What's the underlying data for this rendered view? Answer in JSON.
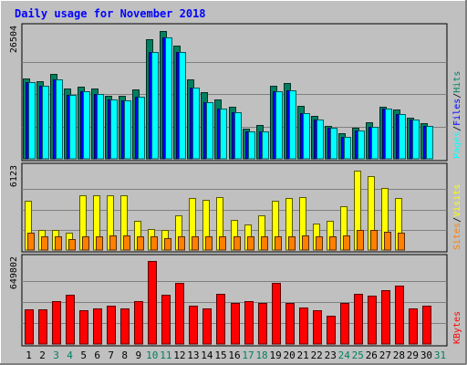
{
  "chart_data": {
    "type": "bar",
    "title": "Daily usage for November 2018",
    "days": [
      "1",
      "2",
      "3",
      "4",
      "5",
      "6",
      "7",
      "8",
      "9",
      "10",
      "11",
      "12",
      "13",
      "14",
      "15",
      "16",
      "17",
      "18",
      "19",
      "20",
      "21",
      "22",
      "23",
      "24",
      "25",
      "26",
      "27",
      "28",
      "29",
      "30",
      "31"
    ],
    "weekend_days": [
      "3",
      "4",
      "10",
      "11",
      "17",
      "18",
      "24",
      "25",
      "31"
    ],
    "panels": [
      {
        "name": "hits-files-pages",
        "max_label": "26504",
        "ymax": 26504,
        "right_labels": [
          "Pages",
          "Files",
          "Hits"
        ],
        "series": [
          {
            "name": "Hits",
            "color": "#008060",
            "values": [
              16500,
              15800,
              17300,
              14300,
              14800,
              14300,
              12900,
              12900,
              14200,
              24500,
              26200,
              23200,
              16300,
              13700,
              12200,
              10600,
              6100,
              6900,
              14900,
              15400,
              10900,
              8700,
              6700,
              5200,
              6400,
              7400,
              10700,
              10000,
              8400,
              7200,
              null
            ]
          },
          {
            "name": "Files",
            "color": "#0000ff",
            "values": [
              15600,
              15000,
              16300,
              13000,
              13800,
              13300,
              12100,
              11900,
              12600,
              21800,
              24800,
              21800,
              14500,
              11600,
              10300,
              9500,
              5600,
              5600,
              13800,
              14000,
              9400,
              8000,
              6400,
              4400,
              5700,
              6500,
              10200,
              9200,
              8000,
              6700,
              null
            ]
          },
          {
            "name": "Pages",
            "color": "#00ffff",
            "values": [
              15600,
              15000,
              16300,
              13000,
              13800,
              13300,
              12100,
              11900,
              12600,
              21800,
              24800,
              21800,
              14500,
              11600,
              10300,
              9500,
              5600,
              5600,
              13800,
              14000,
              9400,
              8000,
              6400,
              4400,
              5700,
              6500,
              10200,
              9200,
              8000,
              6700,
              null
            ]
          }
        ]
      },
      {
        "name": "visits-sites",
        "max_label": "6123",
        "ymax": 6123,
        "right_labels": [
          "Sites",
          "Visits"
        ],
        "series": [
          {
            "name": "Visits",
            "color": "#ffff00",
            "values": [
              3700,
              1500,
              1500,
              1300,
              4100,
              4100,
              4100,
              4100,
              2200,
              1600,
              1500,
              2600,
              3900,
              3800,
              4000,
              2300,
              1900,
              2600,
              3700,
              3900,
              4000,
              2000,
              2200,
              3300,
              6000,
              5600,
              4700,
              3900,
              null,
              null,
              null
            ]
          },
          {
            "name": "Sites",
            "color": "#ff8000",
            "values": [
              1300,
              1000,
              1000,
              800,
              1000,
              1000,
              1100,
              1100,
              1000,
              1000,
              900,
              1000,
              1000,
              1000,
              1000,
              1000,
              1000,
              1000,
              1000,
              1000,
              1100,
              1000,
              1000,
              1100,
              1500,
              1500,
              1400,
              1300,
              null,
              null,
              null
            ]
          }
        ]
      },
      {
        "name": "kbytes",
        "max_label": "649802",
        "ymax": 649802,
        "right_labels": [
          "KBytes"
        ],
        "series": [
          {
            "name": "KBytes",
            "color": "#ff0000",
            "values": [
              270000,
              270000,
              330000,
              378000,
              260000,
              273000,
              298000,
              275000,
              330000,
              640000,
              383000,
              473000,
              295000,
              278000,
              385000,
              320000,
              334000,
              320000,
              470000,
              317000,
              285000,
              263000,
              222000,
              320000,
              385000,
              375000,
              420000,
              452000,
              275000,
              300000,
              null
            ]
          }
        ]
      }
    ]
  }
}
